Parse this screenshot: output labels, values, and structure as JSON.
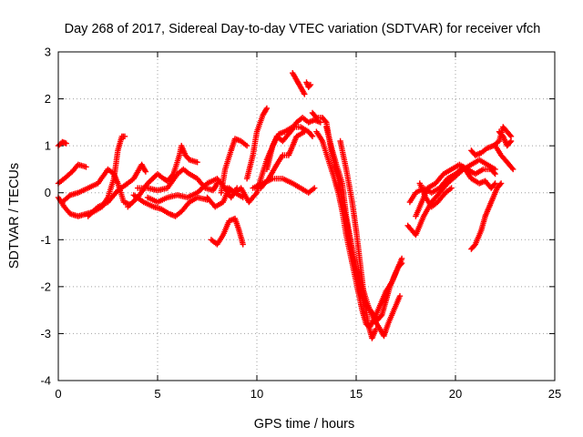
{
  "chart_data": {
    "type": "scatter",
    "title": "Day 268 of 2017, Sidereal Day-to-day VTEC variation (SDTVAR) for receiver vfch",
    "xlabel": "GPS time / hours",
    "ylabel": "SDTVAR / TECUs",
    "xlim": [
      0,
      25
    ],
    "ylim": [
      -4,
      3
    ],
    "xticks": [
      "0",
      "5",
      "10",
      "15",
      "20",
      "25"
    ],
    "yticks": [
      "-4",
      "-3",
      "-2",
      "-1",
      "0",
      "1",
      "2",
      "3"
    ],
    "grid": true,
    "marker": "+",
    "color": "#ff0000",
    "tracks": [
      [
        [
          0.0,
          -0.1
        ],
        [
          0.3,
          -0.3
        ],
        [
          0.6,
          -0.45
        ],
        [
          1.0,
          -0.5
        ],
        [
          1.4,
          -0.45
        ],
        [
          1.8,
          -0.4
        ],
        [
          2.2,
          -0.3
        ],
        [
          2.5,
          -0.1
        ],
        [
          2.8,
          0.3
        ],
        [
          3.0,
          0.9
        ],
        [
          3.2,
          1.2
        ],
        [
          3.35,
          1.2
        ]
      ],
      [
        [
          0.0,
          1.0
        ],
        [
          0.2,
          1.08
        ],
        [
          0.4,
          1.05
        ]
      ],
      [
        [
          0.0,
          0.2
        ],
        [
          0.3,
          0.3
        ],
        [
          0.7,
          0.45
        ],
        [
          1.0,
          0.6
        ],
        [
          1.4,
          0.55
        ]
      ],
      [
        [
          0.2,
          -0.2
        ],
        [
          0.6,
          -0.05
        ],
        [
          1.0,
          0.0
        ],
        [
          1.5,
          0.1
        ],
        [
          2.0,
          0.2
        ],
        [
          2.5,
          0.5
        ],
        [
          2.8,
          0.4
        ],
        [
          3.0,
          0.2
        ],
        [
          3.3,
          -0.2
        ],
        [
          3.6,
          -0.25
        ]
      ],
      [
        [
          1.5,
          -0.5
        ],
        [
          2.0,
          -0.3
        ],
        [
          2.5,
          -0.2
        ],
        [
          3.0,
          0.05
        ],
        [
          3.5,
          0.2
        ],
        [
          3.8,
          0.3
        ],
        [
          4.2,
          0.6
        ],
        [
          4.4,
          0.45
        ]
      ],
      [
        [
          3.5,
          -0.3
        ],
        [
          4.0,
          -0.1
        ],
        [
          4.5,
          0.2
        ],
        [
          5.0,
          0.4
        ],
        [
          5.3,
          0.3
        ],
        [
          5.5,
          0.25
        ],
        [
          5.8,
          0.4
        ],
        [
          6.1,
          0.8
        ],
        [
          6.2,
          1.0
        ],
        [
          6.4,
          0.8
        ],
        [
          6.6,
          0.7
        ],
        [
          7.0,
          0.65
        ]
      ],
      [
        [
          3.8,
          -0.05
        ],
        [
          4.3,
          -0.2
        ],
        [
          4.8,
          -0.3
        ],
        [
          5.2,
          -0.35
        ],
        [
          5.6,
          -0.45
        ],
        [
          5.9,
          -0.5
        ],
        [
          6.2,
          -0.4
        ],
        [
          6.6,
          -0.2
        ],
        [
          7.0,
          -0.1
        ],
        [
          7.5,
          -0.15
        ]
      ],
      [
        [
          4.0,
          0.1
        ],
        [
          4.5,
          0.1
        ],
        [
          5.0,
          0.05
        ],
        [
          5.5,
          0.1
        ],
        [
          6.0,
          0.4
        ],
        [
          6.3,
          0.5
        ],
        [
          6.6,
          0.4
        ],
        [
          7.0,
          0.3
        ],
        [
          7.4,
          0.1
        ],
        [
          7.8,
          0.05
        ],
        [
          8.0,
          0.2
        ]
      ],
      [
        [
          4.5,
          -0.1
        ],
        [
          5.0,
          -0.2
        ],
        [
          5.5,
          -0.1
        ],
        [
          6.0,
          -0.05
        ],
        [
          6.5,
          -0.1
        ],
        [
          7.0,
          0.0
        ],
        [
          7.5,
          0.2
        ],
        [
          8.0,
          0.3
        ],
        [
          8.4,
          0.1
        ],
        [
          8.7,
          -0.1
        ],
        [
          9.0,
          0.1
        ]
      ],
      [
        [
          7.5,
          -0.1
        ],
        [
          7.9,
          -0.3
        ],
        [
          8.3,
          -0.2
        ],
        [
          8.6,
          0.1
        ],
        [
          8.9,
          0.0
        ],
        [
          9.3,
          -0.1
        ]
      ],
      [
        [
          7.7,
          -1.0
        ],
        [
          8.0,
          -1.1
        ],
        [
          8.3,
          -0.9
        ],
        [
          8.6,
          -0.6
        ],
        [
          8.9,
          -0.55
        ],
        [
          9.1,
          -0.8
        ],
        [
          9.3,
          -1.1
        ]
      ],
      [
        [
          8.2,
          0.0
        ],
        [
          8.4,
          0.5
        ],
        [
          8.7,
          0.9
        ],
        [
          8.9,
          1.15
        ],
        [
          9.2,
          1.1
        ],
        [
          9.5,
          1.0
        ]
      ],
      [
        [
          8.5,
          0.1
        ],
        [
          8.9,
          0.0
        ],
        [
          9.2,
          0.1
        ],
        [
          9.6,
          -0.2
        ],
        [
          10.0,
          0.0
        ],
        [
          10.2,
          0.3
        ],
        [
          10.5,
          0.7
        ],
        [
          10.7,
          0.9
        ],
        [
          11.0,
          1.2
        ],
        [
          11.3,
          1.1
        ],
        [
          11.7,
          1.3
        ],
        [
          12.0,
          1.5
        ],
        [
          12.3,
          1.6
        ],
        [
          12.6,
          1.5
        ],
        [
          12.9,
          1.55
        ],
        [
          13.2,
          1.5
        ]
      ],
      [
        [
          9.5,
          0.3
        ],
        [
          9.8,
          0.8
        ],
        [
          10.0,
          1.3
        ],
        [
          10.3,
          1.65
        ],
        [
          10.5,
          1.8
        ]
      ],
      [
        [
          10.2,
          0.1
        ],
        [
          10.6,
          0.3
        ],
        [
          11.0,
          0.6
        ],
        [
          11.3,
          0.8
        ],
        [
          11.6,
          0.8
        ],
        [
          11.8,
          1.0
        ],
        [
          12.0,
          1.2
        ],
        [
          12.4,
          1.3
        ]
      ],
      [
        [
          9.8,
          0.1
        ],
        [
          10.3,
          0.2
        ],
        [
          10.8,
          0.3
        ],
        [
          11.3,
          0.3
        ],
        [
          11.8,
          0.2
        ],
        [
          12.2,
          0.1
        ],
        [
          12.6,
          0.0
        ],
        [
          12.9,
          0.1
        ]
      ],
      [
        [
          10.5,
          0.5
        ],
        [
          10.8,
          1.0
        ],
        [
          11.1,
          1.25
        ],
        [
          11.4,
          1.3
        ],
        [
          11.8,
          1.4
        ],
        [
          12.2,
          1.4
        ],
        [
          12.6,
          1.3
        ],
        [
          12.8,
          1.2
        ]
      ],
      [
        [
          11.8,
          2.55
        ],
        [
          12.0,
          2.4
        ],
        [
          12.2,
          2.25
        ],
        [
          12.4,
          2.1
        ]
      ],
      [
        [
          12.5,
          2.35
        ],
        [
          12.6,
          2.25
        ],
        [
          12.7,
          2.3
        ]
      ],
      [
        [
          12.8,
          1.7
        ],
        [
          13.0,
          1.6
        ],
        [
          13.3,
          1.6
        ],
        [
          13.5,
          1.5
        ],
        [
          13.7,
          1.0
        ],
        [
          13.9,
          0.6
        ],
        [
          14.1,
          0.3
        ],
        [
          14.3,
          -0.2
        ],
        [
          14.5,
          -0.6
        ],
        [
          14.7,
          -1.0
        ],
        [
          14.9,
          -1.4
        ],
        [
          15.1,
          -1.8
        ],
        [
          15.3,
          -2.2
        ],
        [
          15.5,
          -2.4
        ],
        [
          15.7,
          -2.5
        ],
        [
          15.9,
          -2.6
        ],
        [
          16.1,
          -2.7
        ],
        [
          16.3,
          -2.6
        ],
        [
          16.5,
          -2.3
        ],
        [
          16.7,
          -2.0
        ],
        [
          16.9,
          -1.8
        ],
        [
          17.1,
          -1.6
        ],
        [
          17.3,
          -1.5
        ]
      ],
      [
        [
          13.0,
          1.3
        ],
        [
          13.3,
          1.1
        ],
        [
          13.6,
          0.7
        ],
        [
          13.9,
          0.3
        ],
        [
          14.1,
          0.0
        ],
        [
          14.3,
          -0.4
        ],
        [
          14.5,
          -0.9
        ],
        [
          14.7,
          -1.3
        ],
        [
          14.9,
          -1.7
        ],
        [
          15.1,
          -2.1
        ],
        [
          15.3,
          -2.5
        ],
        [
          15.5,
          -2.8
        ],
        [
          15.7,
          -2.85
        ],
        [
          15.9,
          -2.7
        ],
        [
          16.2,
          -2.4
        ],
        [
          16.5,
          -2.1
        ],
        [
          16.8,
          -1.9
        ],
        [
          17.1,
          -1.6
        ],
        [
          17.3,
          -1.4
        ]
      ],
      [
        [
          13.5,
          1.4
        ],
        [
          13.8,
          0.9
        ],
        [
          14.0,
          0.6
        ],
        [
          14.3,
          0.2
        ],
        [
          14.5,
          -0.5
        ],
        [
          14.8,
          -1.2
        ],
        [
          15.0,
          -1.6
        ],
        [
          15.3,
          -2.0
        ],
        [
          15.6,
          -2.4
        ],
        [
          15.9,
          -2.7
        ],
        [
          16.2,
          -2.9
        ],
        [
          16.4,
          -3.05
        ],
        [
          16.6,
          -2.8
        ],
        [
          16.9,
          -2.5
        ],
        [
          17.2,
          -2.2
        ]
      ],
      [
        [
          14.2,
          1.1
        ],
        [
          14.5,
          0.5
        ],
        [
          14.8,
          -0.2
        ],
        [
          15.0,
          -0.8
        ],
        [
          15.2,
          -1.5
        ],
        [
          15.4,
          -2.2
        ],
        [
          15.6,
          -2.8
        ],
        [
          15.8,
          -3.1
        ],
        [
          16.0,
          -2.9
        ]
      ],
      [
        [
          18.0,
          -0.5
        ],
        [
          18.3,
          -0.2
        ],
        [
          18.6,
          0.1
        ],
        [
          19.0,
          0.2
        ],
        [
          19.4,
          0.4
        ],
        [
          19.8,
          0.5
        ],
        [
          20.2,
          0.6
        ],
        [
          20.6,
          0.5
        ],
        [
          21.0,
          0.4
        ],
        [
          21.4,
          0.5
        ],
        [
          21.8,
          0.5
        ],
        [
          22.0,
          0.4
        ]
      ],
      [
        [
          17.6,
          -0.7
        ],
        [
          18.0,
          -0.9
        ],
        [
          18.4,
          -0.5
        ],
        [
          18.8,
          -0.2
        ],
        [
          19.2,
          0.0
        ],
        [
          19.6,
          0.2
        ],
        [
          20.0,
          0.35
        ],
        [
          20.4,
          0.5
        ],
        [
          20.8,
          0.6
        ],
        [
          21.2,
          0.7
        ],
        [
          21.6,
          0.6
        ],
        [
          22.0,
          0.5
        ]
      ],
      [
        [
          17.7,
          -0.2
        ],
        [
          18.0,
          0.0
        ],
        [
          18.4,
          0.1
        ],
        [
          18.8,
          0.0
        ],
        [
          19.2,
          0.1
        ],
        [
          19.6,
          0.3
        ],
        [
          20.0,
          0.4
        ],
        [
          20.4,
          0.55
        ],
        [
          20.8,
          0.3
        ],
        [
          21.2,
          0.2
        ],
        [
          21.5,
          0.25
        ],
        [
          21.8,
          0.1
        ],
        [
          22.0,
          0.2
        ]
      ],
      [
        [
          18.2,
          0.2
        ],
        [
          18.5,
          -0.1
        ],
        [
          18.8,
          -0.3
        ],
        [
          19.1,
          -0.2
        ],
        [
          19.5,
          0.0
        ],
        [
          19.8,
          0.1
        ]
      ],
      [
        [
          20.8,
          0.9
        ],
        [
          21.0,
          0.8
        ],
        [
          21.3,
          0.85
        ],
        [
          21.6,
          0.95
        ],
        [
          21.9,
          1.0
        ],
        [
          22.2,
          1.1
        ],
        [
          22.4,
          1.4
        ],
        [
          22.6,
          1.3
        ],
        [
          22.8,
          1.2
        ]
      ],
      [
        [
          20.8,
          -1.2
        ],
        [
          21.0,
          -1.1
        ],
        [
          21.3,
          -0.8
        ],
        [
          21.5,
          -0.5
        ],
        [
          21.7,
          -0.3
        ],
        [
          21.9,
          -0.1
        ],
        [
          22.1,
          0.1
        ],
        [
          22.3,
          0.2
        ]
      ],
      [
        [
          22.0,
          1.0
        ],
        [
          22.3,
          0.8
        ],
        [
          22.5,
          0.7
        ],
        [
          22.7,
          0.6
        ],
        [
          22.9,
          0.5
        ]
      ],
      [
        [
          22.2,
          1.3
        ],
        [
          22.4,
          1.2
        ],
        [
          22.6,
          1.0
        ],
        [
          22.8,
          1.1
        ]
      ]
    ]
  }
}
